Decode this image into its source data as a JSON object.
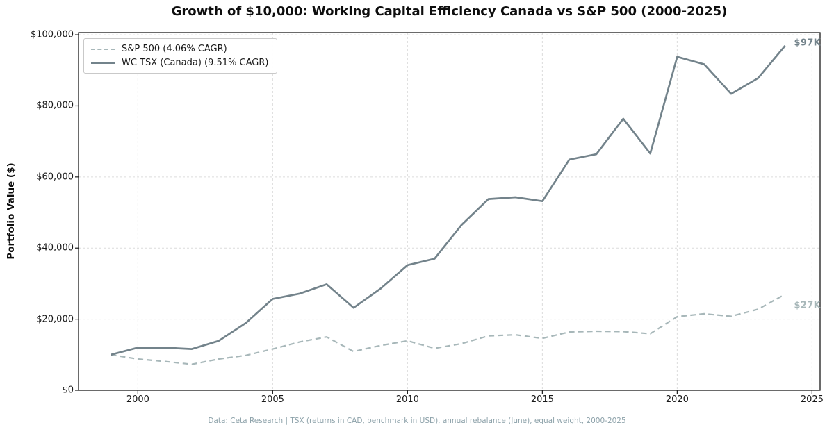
{
  "page": {
    "title": "Growth of $10,000: Working Capital Efficiency Canada vs S&P 500 (2000-2025)"
  },
  "footer": {
    "text": "Data: Ceta Research | TSX (returns in CAD, benchmark in USD), annual rebalance (June), equal weight, 2000-2025"
  },
  "chart_data": {
    "type": "line",
    "title": "Growth of $10,000: Working Capital Efficiency Canada vs S&P 500 (2000-2025)",
    "xlabel": "",
    "ylabel": "Portfolio Value ($)",
    "x": [
      1999,
      2000,
      2001,
      2002,
      2003,
      2004,
      2005,
      2006,
      2007,
      2008,
      2009,
      2010,
      2011,
      2012,
      2013,
      2014,
      2015,
      2016,
      2017,
      2018,
      2019,
      2020,
      2021,
      2022,
      2023,
      2024
    ],
    "series": [
      {
        "name": "S&P 500 (4.06% CAGR)",
        "style": "dashed",
        "color": "#a7b7b9",
        "data_name": "sp500-line",
        "values": [
          10000,
          8800,
          8100,
          7300,
          8800,
          9800,
          11600,
          13600,
          15000,
          10900,
          12600,
          13900,
          11800,
          13100,
          15300,
          15600,
          14600,
          16400,
          16600,
          16500,
          15900,
          20700,
          21500,
          20800,
          22800,
          27000
        ]
      },
      {
        "name": "WC TSX (Canada) (9.51% CAGR)",
        "style": "solid",
        "color": "#73838b",
        "data_name": "wc-tsx-line",
        "values": [
          10000,
          12000,
          12000,
          11600,
          13900,
          18900,
          25700,
          27200,
          29800,
          23200,
          28600,
          35200,
          37000,
          46500,
          53800,
          54300,
          53200,
          64900,
          66400,
          76400,
          66600,
          93800,
          91700,
          83400,
          87800,
          96900
        ]
      }
    ],
    "xlim": [
      1997.8,
      2025.3
    ],
    "ylim": [
      0,
      100600
    ],
    "xticks": [
      2000,
      2005,
      2010,
      2015,
      2020,
      2025
    ],
    "yticks": [
      {
        "value": 0,
        "label": "$0"
      },
      {
        "value": 20000,
        "label": "$20,000"
      },
      {
        "value": 40000,
        "label": "$40,000"
      },
      {
        "value": 60000,
        "label": "$60,000"
      },
      {
        "value": 80000,
        "label": "$80,000"
      },
      {
        "value": 100000,
        "label": "$100,000"
      }
    ],
    "grid": true,
    "legend_position": "upper left",
    "annotations": [
      {
        "text": "$97K",
        "series": 1,
        "color": "#73838b",
        "dy": -4
      },
      {
        "text": "$27K",
        "series": 0,
        "color": "#a7b7b9",
        "dy": 16
      }
    ]
  }
}
